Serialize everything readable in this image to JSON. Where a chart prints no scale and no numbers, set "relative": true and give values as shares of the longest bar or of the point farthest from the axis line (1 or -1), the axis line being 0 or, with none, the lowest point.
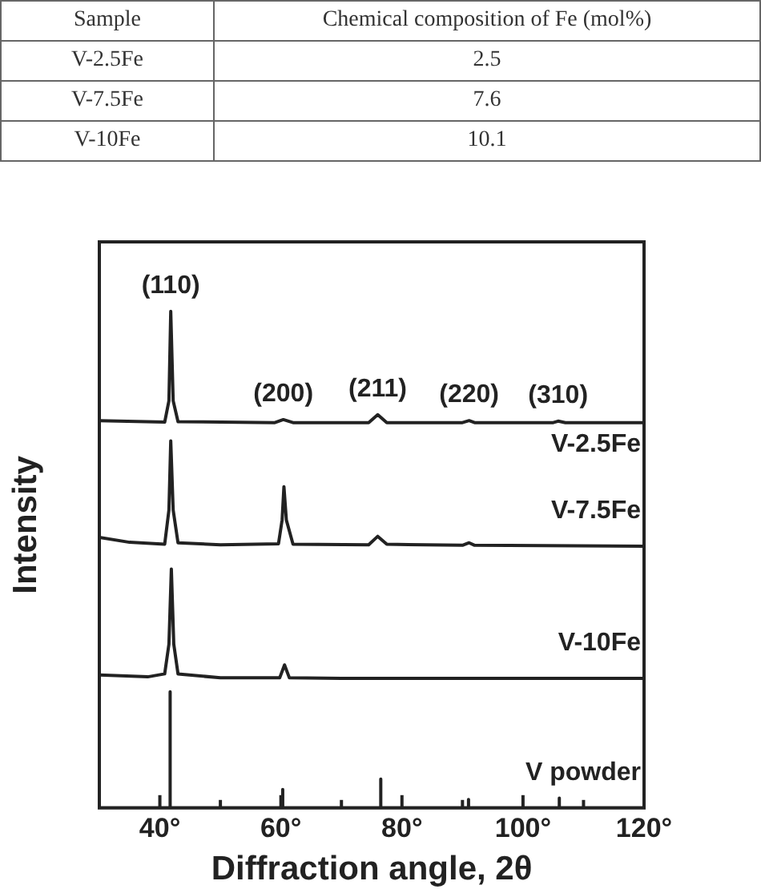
{
  "chart_data": [
    {
      "type": "other",
      "xlabel": "Sample",
      "ylabel": "Chemical composition of Fe (mol%)",
      "categories": [
        "V-2.5Fe",
        "V-7.5Fe",
        "V-10Fe"
      ],
      "values": [
        2.5,
        7.6,
        10.1
      ],
      "data_labels": true
    },
    {
      "type": "line",
      "relative": true,
      "xlabel": "Diffraction angle, 2θ",
      "ylabel": "Intensity",
      "xlim": [
        30,
        120
      ],
      "xticks": [
        {
          "value": 40,
          "label": "40°"
        },
        {
          "value": 50,
          "label": null
        },
        {
          "value": 60,
          "label": "60°"
        },
        {
          "value": 70,
          "label": null
        },
        {
          "value": 80,
          "label": "80°"
        },
        {
          "value": 90,
          "label": null
        },
        {
          "value": 100,
          "label": "100°"
        },
        {
          "value": 110,
          "label": null
        },
        {
          "value": 120,
          "label": "120°"
        }
      ],
      "tick_labels": "x",
      "grid": false,
      "legend": false,
      "marker": "none",
      "line_style": "solid",
      "annotations": [
        {
          "text": "(110)",
          "x": 41.8,
          "y": 1.0
        },
        {
          "text": "(200)",
          "x": 60.4,
          "y": 0.782
        },
        {
          "text": "(211)",
          "x": 76,
          "y": 0.792
        },
        {
          "text": "(220)",
          "x": 91.1,
          "y": 0.78
        },
        {
          "text": "(310)",
          "x": 105.8,
          "y": 0.779
        }
      ],
      "series": [
        {
          "name": "V-2.5Fe",
          "color": "#222222",
          "x": [
            30,
            40.8,
            41.5,
            41.8,
            42.2,
            43,
            59,
            60.4,
            62,
            74.5,
            76,
            77.5,
            90,
            91.1,
            92,
            105,
            105.8,
            107,
            120
          ],
          "values": [
            0.78,
            0.777,
            0.82,
            1.0,
            0.82,
            0.778,
            0.776,
            0.782,
            0.776,
            0.776,
            0.792,
            0.776,
            0.776,
            0.78,
            0.776,
            0.776,
            0.779,
            0.776,
            0.776
          ]
        },
        {
          "name": "V-7.5Fe",
          "color": "#222222",
          "x": [
            30,
            35,
            40.8,
            41.5,
            41.8,
            42.2,
            43,
            50,
            59.6,
            60.2,
            60.5,
            60.9,
            62,
            74.5,
            76,
            77.5,
            90,
            91.1,
            92,
            120
          ],
          "values": [
            0.545,
            0.535,
            0.531,
            0.6,
            0.739,
            0.6,
            0.534,
            0.53,
            0.532,
            0.58,
            0.647,
            0.58,
            0.531,
            0.53,
            0.547,
            0.531,
            0.529,
            0.534,
            0.529,
            0.527
          ]
        },
        {
          "name": "V-10Fe",
          "color": "#222222",
          "x": [
            30,
            38,
            40.8,
            41.5,
            41.9,
            42.3,
            43,
            50,
            59.8,
            60.6,
            61.4,
            70,
            120
          ],
          "values": [
            0.268,
            0.264,
            0.27,
            0.33,
            0.481,
            0.33,
            0.27,
            0.262,
            0.262,
            0.288,
            0.262,
            0.261,
            0.261
          ]
        },
        {
          "name": "V powder",
          "color": "#222222",
          "x": [
            30,
            41.7,
            41.7,
            41.7,
            60.3,
            60.3,
            60.3,
            76.5,
            76.5,
            76.5,
            91,
            91,
            91,
            106,
            106,
            106,
            120
          ],
          "values": [
            0,
            0,
            0.234,
            0,
            0,
            0.037,
            0,
            0,
            0.058,
            0,
            0,
            0.017,
            0,
            0,
            0.02,
            0,
            0
          ]
        }
      ]
    }
  ]
}
